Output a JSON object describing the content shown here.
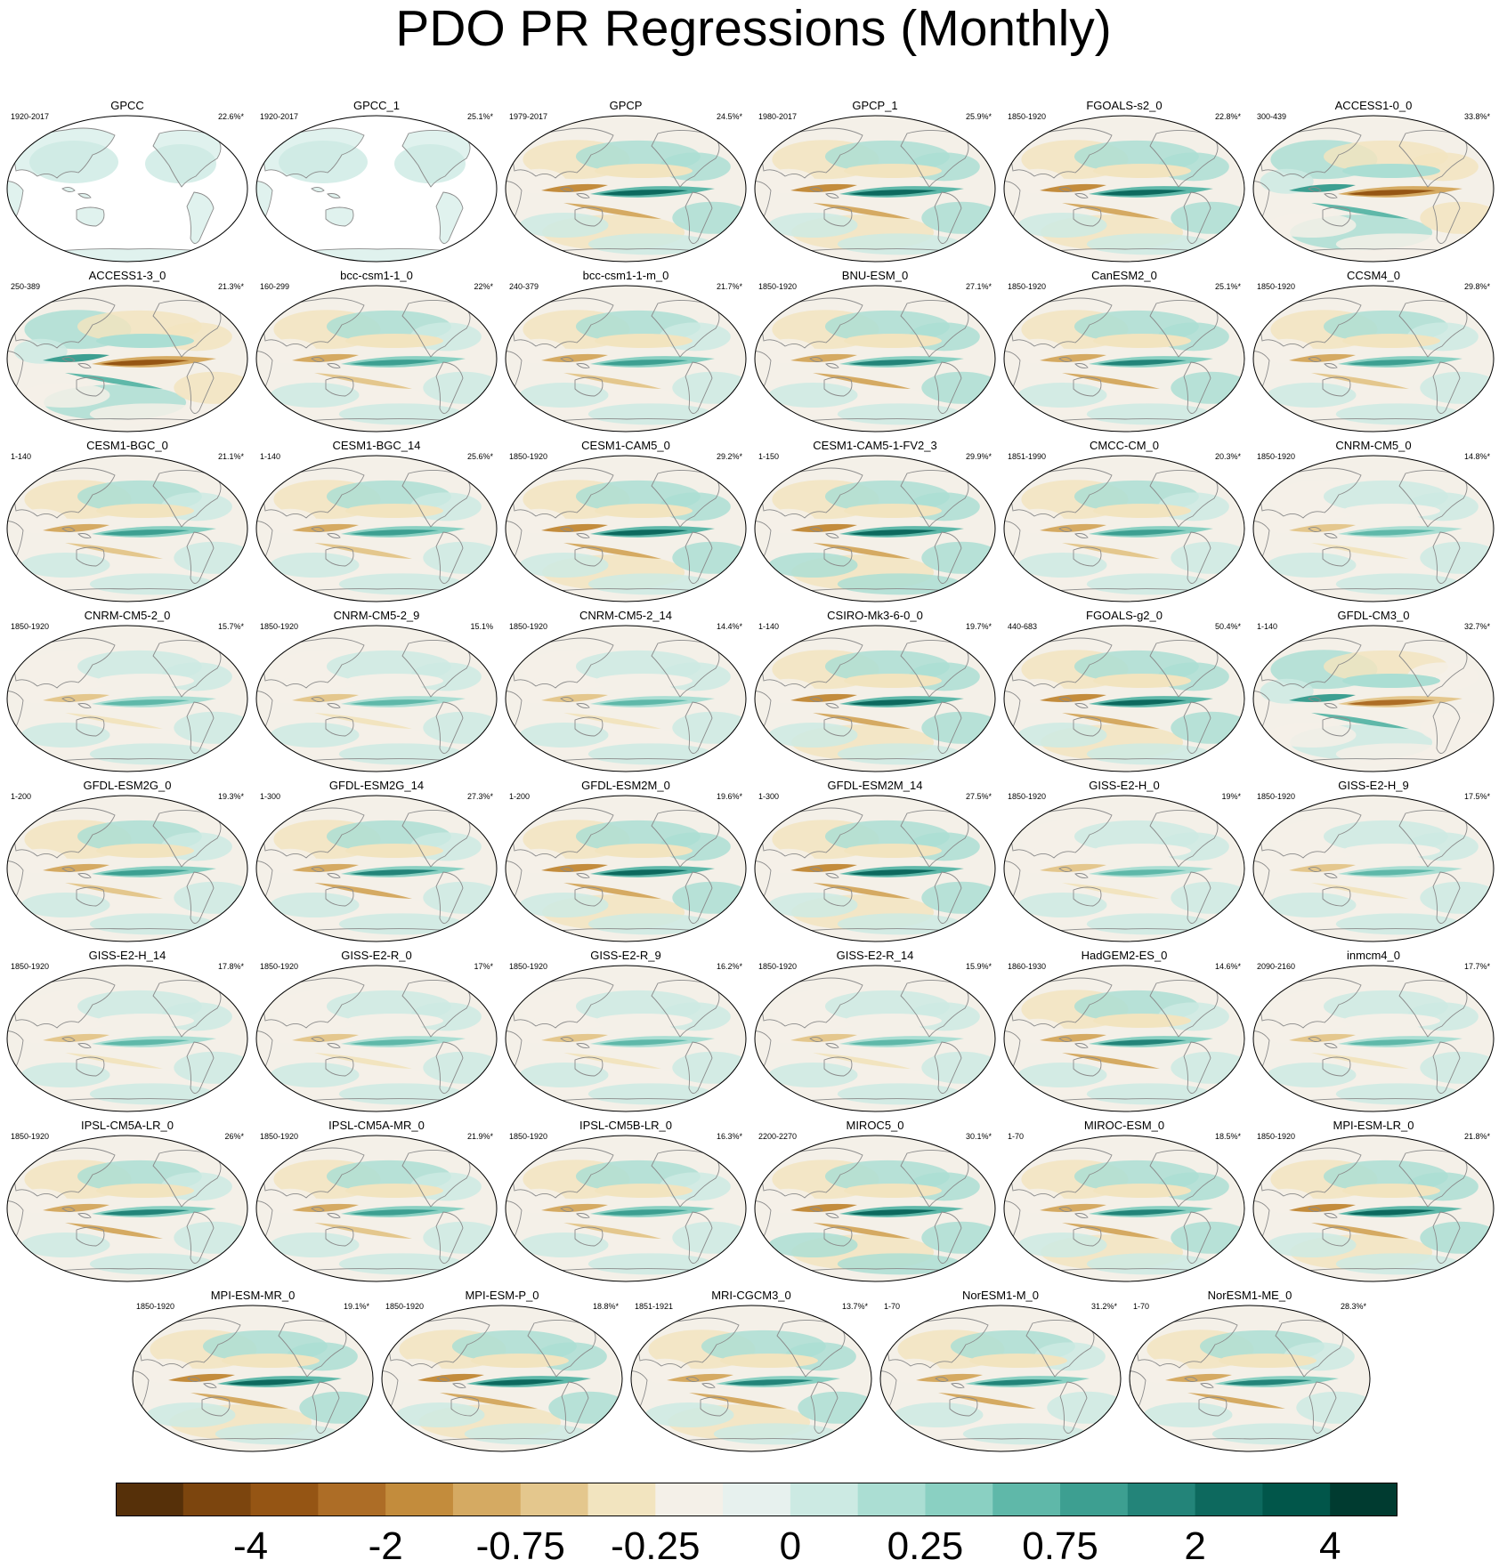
{
  "title": "PDO PR Regressions (Monthly)",
  "chart_data": {
    "type": "map-panel-grid",
    "title": "PDO PR Regressions (Monthly)",
    "projection": "global-robinson",
    "panels": [
      {
        "name": "GPCC",
        "range": "1920-2017",
        "pct": "22.6%*",
        "land_only": true,
        "intensity": 0.2
      },
      {
        "name": "GPCC_1",
        "range": "1920-2017",
        "pct": "25.1%*",
        "land_only": true,
        "intensity": 0.2
      },
      {
        "name": "GPCP",
        "range": "1979-2017",
        "pct": "24.5%*",
        "intensity": 0.8
      },
      {
        "name": "GPCP_1",
        "range": "1980-2017",
        "pct": "25.9%*",
        "intensity": 0.8
      },
      {
        "name": "FGOALS-s2_0",
        "range": "1850-1920",
        "pct": "22.8%*",
        "intensity": 0.75
      },
      {
        "name": "ACCESS1-0_0",
        "range": "300-439",
        "pct": "33.8%*",
        "intensity": 0.8,
        "inverted": true
      },
      {
        "name": "ACCESS1-3_0",
        "range": "250-389",
        "pct": "21.3%*",
        "intensity": 0.8,
        "inverted": true
      },
      {
        "name": "bcc-csm1-1_0",
        "range": "160-299",
        "pct": "22%*",
        "intensity": 0.5
      },
      {
        "name": "bcc-csm1-1-m_0",
        "range": "240-379",
        "pct": "21.7%*",
        "intensity": 0.5
      },
      {
        "name": "BNU-ESM_0",
        "range": "1850-1920",
        "pct": "27.1%*",
        "intensity": 0.65
      },
      {
        "name": "CanESM2_0",
        "range": "1850-1920",
        "pct": "25.1%*",
        "intensity": 0.65
      },
      {
        "name": "CCSM4_0",
        "range": "1850-1920",
        "pct": "29.8%*",
        "intensity": 0.45
      },
      {
        "name": "CESM1-BGC_0",
        "range": "1-140",
        "pct": "21.1%*",
        "intensity": 0.55
      },
      {
        "name": "CESM1-BGC_14",
        "range": "1-140",
        "pct": "25.6%*",
        "intensity": 0.55
      },
      {
        "name": "CESM1-CAM5_0",
        "range": "1850-1920",
        "pct": "29.2%*",
        "intensity": 0.85
      },
      {
        "name": "CESM1-CAM5-1-FV2_3",
        "range": "1-150",
        "pct": "29.9%*",
        "intensity": 0.9
      },
      {
        "name": "CMCC-CM_0",
        "range": "1851-1990",
        "pct": "20.3%*",
        "intensity": 0.45
      },
      {
        "name": "CNRM-CM5_0",
        "range": "1850-1920",
        "pct": "14.8%*",
        "intensity": 0.35
      },
      {
        "name": "CNRM-CM5-2_0",
        "range": "1850-1920",
        "pct": "15.7%*",
        "intensity": 0.3
      },
      {
        "name": "CNRM-CM5-2_9",
        "range": "1850-1920",
        "pct": "15.1%",
        "intensity": 0.35
      },
      {
        "name": "CNRM-CM5-2_14",
        "range": "1850-1920",
        "pct": "14.4%*",
        "intensity": 0.3
      },
      {
        "name": "CSIRO-Mk3-6-0_0",
        "range": "1-140",
        "pct": "19.7%*",
        "intensity": 0.8
      },
      {
        "name": "FGOALS-g2_0",
        "range": "440-683",
        "pct": "50.4%*",
        "intensity": 0.85
      },
      {
        "name": "GFDL-CM3_0",
        "range": "1-140",
        "pct": "32.7%*",
        "intensity": 0.6,
        "inverted": true
      },
      {
        "name": "GFDL-ESM2G_0",
        "range": "1-200",
        "pct": "19.3%*",
        "intensity": 0.55
      },
      {
        "name": "GFDL-ESM2G_14",
        "range": "1-300",
        "pct": "27.3%*",
        "intensity": 0.6
      },
      {
        "name": "GFDL-ESM2M_0",
        "range": "1-200",
        "pct": "19.6%*",
        "intensity": 0.75
      },
      {
        "name": "GFDL-ESM2M_14",
        "range": "1-300",
        "pct": "27.5%*",
        "intensity": 0.75
      },
      {
        "name": "GISS-E2-H_0",
        "range": "1850-1920",
        "pct": "19%*",
        "intensity": 0.35
      },
      {
        "name": "GISS-E2-H_9",
        "range": "1850-1920",
        "pct": "17.5%*",
        "intensity": 0.35
      },
      {
        "name": "GISS-E2-H_14",
        "range": "1850-1920",
        "pct": "17.8%*",
        "intensity": 0.35
      },
      {
        "name": "GISS-E2-R_0",
        "range": "1850-1920",
        "pct": "17%*",
        "intensity": 0.35
      },
      {
        "name": "GISS-E2-R_9",
        "range": "1850-1920",
        "pct": "16.2%*",
        "intensity": 0.3
      },
      {
        "name": "GISS-E2-R_14",
        "range": "1850-1920",
        "pct": "15.9%*",
        "intensity": 0.3
      },
      {
        "name": "HadGEM2-ES_0",
        "range": "1860-1930",
        "pct": "14.6%*",
        "intensity": 0.6
      },
      {
        "name": "inmcm4_0",
        "range": "2090-2160",
        "pct": "17.7%*",
        "intensity": 0.35
      },
      {
        "name": "IPSL-CM5A-LR_0",
        "range": "1850-1920",
        "pct": "26%*",
        "intensity": 0.6
      },
      {
        "name": "IPSL-CM5A-MR_0",
        "range": "1850-1920",
        "pct": "21.9%*",
        "intensity": 0.55
      },
      {
        "name": "IPSL-CM5B-LR_0",
        "range": "1850-1920",
        "pct": "16.3%*",
        "intensity": 0.55
      },
      {
        "name": "MIROC5_0",
        "range": "2200-2270",
        "pct": "30.1%*",
        "intensity": 0.9
      },
      {
        "name": "MIROC-ESM_0",
        "range": "1-70",
        "pct": "18.5%*",
        "intensity": 0.7
      },
      {
        "name": "MPI-ESM-LR_0",
        "range": "1850-1920",
        "pct": "21.8%*",
        "intensity": 0.8
      },
      {
        "name": "MPI-ESM-MR_0",
        "range": "1850-1920",
        "pct": "19.1%*",
        "intensity": 0.75
      },
      {
        "name": "MPI-ESM-P_0",
        "range": "1850-1920",
        "pct": "18.8%*",
        "intensity": 0.8
      },
      {
        "name": "MRI-CGCM3_0",
        "range": "1851-1921",
        "pct": "13.7%*",
        "intensity": 0.7
      },
      {
        "name": "NorESM1-M_0",
        "range": "1-70",
        "pct": "31.2%*",
        "intensity": 0.6
      },
      {
        "name": "NorESM1-ME_0",
        "range": "1-70",
        "pct": "28.3%*",
        "intensity": 0.6
      }
    ],
    "colorbar": {
      "colors": [
        "#563009",
        "#7c450e",
        "#955514",
        "#ad6d26",
        "#c38c3c",
        "#d5aa62",
        "#e4c78d",
        "#f2e4bf",
        "#f4f0e8",
        "#e7f1ee",
        "#cceae3",
        "#abded3",
        "#8ad0c2",
        "#5fb8a9",
        "#3d9f91",
        "#238479",
        "#0d695e",
        "#01564a",
        "#003b30"
      ],
      "tick_labels": [
        "-4",
        "-2",
        "-0.75",
        "-0.25",
        "0",
        "0.25",
        "0.75",
        "2",
        "4"
      ]
    },
    "colors": {
      "land_outline": "#8a8a8a",
      "frame": "#000000",
      "neutral": "#f4f0e8",
      "land_only_fill": "#ffffff"
    }
  }
}
